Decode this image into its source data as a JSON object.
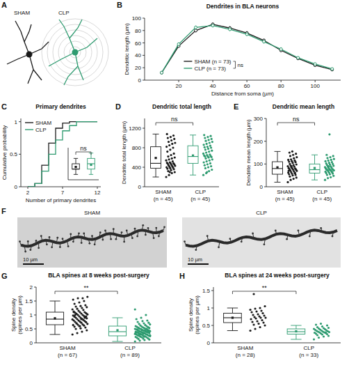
{
  "panel_a": {
    "letter": "A",
    "labels": [
      "SHAM",
      "CLP"
    ],
    "colors": [
      "#1a1a1a",
      "#2e9b70"
    ]
  },
  "chart_data": [
    {
      "panel": "B",
      "type": "line",
      "title": "Dendrites in BLA neurons",
      "x_label": "Distance from soma (µm)",
      "y_label": "Dendritic length (µm)",
      "x": [
        10,
        20,
        30,
        40,
        50,
        60,
        70,
        80,
        90,
        100,
        110
      ],
      "xlim": [
        0,
        115
      ],
      "xticks": [
        20,
        40,
        60,
        80,
        100
      ],
      "ylim": [
        0,
        100
      ],
      "yticks": [
        0,
        20,
        40,
        60,
        80,
        100
      ],
      "legend": "lower left",
      "annotation": "ns",
      "marker": "circle",
      "series": [
        {
          "name": "SHAM (n = 73)",
          "color": "#1a1a1a",
          "values": [
            12,
            55,
            80,
            90,
            84,
            76,
            64,
            48,
            35,
            24,
            17
          ],
          "errors": [
            1,
            2,
            3,
            3,
            3,
            3,
            3,
            3,
            2,
            2,
            2
          ]
        },
        {
          "name": "CLP (n = 73)",
          "color": "#2e9b70",
          "values": [
            12,
            58,
            85,
            88,
            82,
            74,
            62,
            50,
            36,
            26,
            18
          ],
          "errors": [
            1,
            2,
            3,
            3,
            3,
            3,
            3,
            3,
            2,
            2,
            2
          ]
        }
      ]
    },
    {
      "panel": "C",
      "type": "line",
      "line_style": "step",
      "title": "Primary dendrites",
      "x_label": "Number of primary dendrites",
      "y_label": "Cumulative probability",
      "x": [
        2,
        3,
        4,
        5,
        6,
        7,
        8,
        9,
        12
      ],
      "xlim": [
        1,
        12.5
      ],
      "xticks": [
        2,
        7,
        12
      ],
      "ylim": [
        0,
        1.05
      ],
      "yticks": [
        0,
        0.5,
        1
      ],
      "legend": "upper left",
      "series": [
        {
          "name": "SHAM",
          "color": "#1a1a1a",
          "values": [
            0,
            0.05,
            0.33,
            0.67,
            0.9,
            0.98,
            1,
            1,
            1
          ]
        },
        {
          "name": "CLP",
          "color": "#2e9b70",
          "values": [
            0,
            0.05,
            0.24,
            0.5,
            0.72,
            0.86,
            0.94,
            1,
            1
          ]
        }
      ]
    },
    {
      "type": "box",
      "ylim": [
        2,
        8
      ],
      "tick_labels": false,
      "annotation": "ns",
      "series": [
        {
          "color": "#1a1a1a",
          "box": {
            "min": 3,
            "q1": 4,
            "median": 4,
            "q3": 5,
            "max": 6,
            "mean": 4.4
          }
        },
        {
          "color": "#2e9b70",
          "box": {
            "min": 3,
            "q1": 4,
            "median": 5,
            "q3": 6,
            "max": 7,
            "mean": 4.8
          }
        }
      ]
    },
    {
      "panel": "D",
      "type": "box",
      "title": "Dendritic total length",
      "y_label": "Dendrite total length (µm)",
      "ylim": [
        0,
        1400
      ],
      "yticks": [
        0,
        400,
        800,
        1200
      ],
      "annotation": "ns",
      "series": [
        {
          "name": "SHAM (n = 45)",
          "color": "#1a1a1a",
          "box": {
            "min": 200,
            "q1": 380,
            "median": 480,
            "q3": 820,
            "max": 1080,
            "mean": 590
          },
          "values": [
            200,
            240,
            280,
            300,
            320,
            340,
            360,
            370,
            380,
            390,
            400,
            410,
            420,
            430,
            440,
            450,
            460,
            470,
            480,
            480,
            490,
            500,
            520,
            540,
            560,
            580,
            600,
            620,
            650,
            680,
            720,
            760,
            800,
            820,
            850,
            880,
            900,
            920,
            950,
            980,
            1000,
            1020,
            1050,
            1080,
            300
          ]
        },
        {
          "name": "CLP (n = 45)",
          "color": "#2e9b70",
          "box": {
            "min": 240,
            "q1": 480,
            "median": 620,
            "q3": 840,
            "max": 1060,
            "mean": 640
          },
          "values": [
            240,
            280,
            320,
            350,
            380,
            400,
            420,
            440,
            460,
            480,
            500,
            520,
            540,
            560,
            580,
            600,
            610,
            620,
            620,
            630,
            640,
            650,
            660,
            680,
            700,
            720,
            740,
            760,
            780,
            800,
            810,
            820,
            840,
            860,
            880,
            900,
            920,
            940,
            960,
            980,
            1000,
            1020,
            1040,
            1060,
            300
          ]
        }
      ]
    },
    {
      "panel": "E",
      "type": "box",
      "title": "Dendritic mean length",
      "y_label": "Dendrite mean length (µm)",
      "ylim": [
        0,
        300
      ],
      "yticks": [
        0,
        100,
        200,
        300
      ],
      "annotation": "ns",
      "series": [
        {
          "name": "SHAM (n = 45)",
          "color": "#1a1a1a",
          "box": {
            "min": 20,
            "q1": 55,
            "median": 80,
            "q3": 110,
            "max": 155,
            "mean": 85
          },
          "values": [
            20,
            30,
            35,
            40,
            45,
            50,
            52,
            55,
            58,
            60,
            62,
            65,
            68,
            70,
            72,
            75,
            76,
            78,
            80,
            80,
            82,
            85,
            88,
            90,
            92,
            95,
            98,
            100,
            105,
            108,
            110,
            112,
            115,
            118,
            120,
            125,
            130,
            135,
            140,
            145,
            150,
            155,
            60,
            70,
            90
          ]
        },
        {
          "name": "CLP (n = 45)",
          "color": "#2e9b70",
          "box": {
            "min": 30,
            "q1": 60,
            "median": 75,
            "q3": 100,
            "max": 140,
            "mean": 82
          },
          "values": [
            30,
            38,
            42,
            48,
            52,
            55,
            58,
            60,
            62,
            64,
            66,
            68,
            70,
            72,
            73,
            74,
            75,
            75,
            76,
            78,
            80,
            82,
            84,
            86,
            88,
            90,
            92,
            95,
            98,
            100,
            102,
            105,
            108,
            112,
            115,
            118,
            122,
            126,
            130,
            135,
            140,
            230,
            65,
            80,
            90
          ]
        }
      ]
    },
    {
      "panel": "G",
      "type": "box",
      "title": "BLA spines at 8 weeks post-surgery",
      "y_label": "Spine density (spines per µm)",
      "ylim": [
        0,
        2
      ],
      "yticks": [
        0,
        0.5,
        1,
        1.5,
        2
      ],
      "annotation": "**",
      "series": [
        {
          "name": "SHAM (n = 67)",
          "color": "#1a1a1a",
          "box": {
            "min": 0.3,
            "q1": 0.65,
            "median": 0.85,
            "q3": 1.1,
            "max": 1.5,
            "mean": 0.88
          },
          "values": [
            0.3,
            0.35,
            0.4,
            0.45,
            0.5,
            0.52,
            0.55,
            0.58,
            0.6,
            0.62,
            0.64,
            0.65,
            0.66,
            0.68,
            0.7,
            0.72,
            0.74,
            0.75,
            0.76,
            0.78,
            0.8,
            0.8,
            0.82,
            0.84,
            0.85,
            0.86,
            0.88,
            0.9,
            0.9,
            0.92,
            0.94,
            0.95,
            0.96,
            0.98,
            1.0,
            1.0,
            1.02,
            1.04,
            1.05,
            1.06,
            1.08,
            1.1,
            1.1,
            1.12,
            1.15,
            1.18,
            1.2,
            1.22,
            1.25,
            1.28,
            1.3,
            1.32,
            1.35,
            1.4,
            1.45,
            1.5,
            1.55,
            1.6,
            1.6,
            1.65,
            0.7,
            0.85,
            0.95,
            1.0,
            0.6,
            0.9,
            1.1
          ]
        },
        {
          "name": "CLP (n = 89)",
          "color": "#2e9b70",
          "box": {
            "min": 0.05,
            "q1": 0.25,
            "median": 0.4,
            "q3": 0.6,
            "max": 0.9,
            "mean": 0.45
          },
          "values": [
            0.05,
            0.08,
            0.1,
            0.12,
            0.14,
            0.15,
            0.16,
            0.18,
            0.2,
            0.2,
            0.21,
            0.22,
            0.23,
            0.24,
            0.25,
            0.25,
            0.26,
            0.27,
            0.28,
            0.29,
            0.3,
            0.3,
            0.31,
            0.32,
            0.33,
            0.34,
            0.35,
            0.35,
            0.36,
            0.37,
            0.38,
            0.38,
            0.39,
            0.4,
            0.4,
            0.41,
            0.42,
            0.43,
            0.44,
            0.45,
            0.45,
            0.46,
            0.47,
            0.48,
            0.49,
            0.5,
            0.5,
            0.51,
            0.52,
            0.53,
            0.54,
            0.55,
            0.56,
            0.57,
            0.58,
            0.6,
            0.6,
            0.62,
            0.64,
            0.66,
            0.68,
            0.7,
            0.72,
            0.75,
            0.78,
            0.8,
            0.85,
            0.9,
            1.0,
            1.2,
            0.3,
            0.35,
            0.4,
            0.28,
            0.33,
            0.42,
            0.38,
            0.45,
            0.5,
            0.36,
            0.32,
            0.44,
            0.27,
            0.41,
            0.22,
            0.55,
            0.48,
            0.37,
            0.43
          ]
        }
      ]
    },
    {
      "panel": "H",
      "type": "box",
      "title": "BLA spines at 24 weeks post-surgery",
      "y_label": "Spine density (spines per µm)",
      "ylim": [
        0,
        1.6
      ],
      "yticks": [
        0,
        0.5,
        1,
        1.5
      ],
      "annotation": "**",
      "series": [
        {
          "name": "SHAM (n = 28)",
          "color": "#1a1a1a",
          "box": {
            "min": 0.35,
            "q1": 0.58,
            "median": 0.72,
            "q3": 0.85,
            "max": 1.0,
            "mean": 0.72
          },
          "values": [
            0.35,
            0.4,
            0.45,
            0.5,
            0.52,
            0.55,
            0.58,
            0.6,
            0.62,
            0.65,
            0.68,
            0.7,
            0.72,
            0.72,
            0.74,
            0.76,
            0.78,
            0.8,
            0.82,
            0.85,
            0.88,
            0.9,
            0.92,
            0.95,
            0.98,
            1.0,
            1.05,
            1.4
          ]
        },
        {
          "name": "CLP (n = 33)",
          "color": "#2e9b70",
          "box": {
            "min": 0.1,
            "q1": 0.25,
            "median": 0.32,
            "q3": 0.4,
            "max": 0.5,
            "mean": 0.33
          },
          "values": [
            0.1,
            0.15,
            0.18,
            0.2,
            0.22,
            0.24,
            0.25,
            0.26,
            0.27,
            0.28,
            0.29,
            0.3,
            0.3,
            0.31,
            0.32,
            0.32,
            0.33,
            0.34,
            0.35,
            0.36,
            0.37,
            0.38,
            0.39,
            0.4,
            0.41,
            0.42,
            0.43,
            0.45,
            0.47,
            0.5,
            0.52,
            0.55,
            0.3
          ]
        }
      ]
    }
  ],
  "panel_f": {
    "letter": "F",
    "images": [
      {
        "label": "SHAM",
        "scale_bar": "10 µm"
      },
      {
        "label": "CLP",
        "scale_bar": "10 µm"
      }
    ]
  }
}
